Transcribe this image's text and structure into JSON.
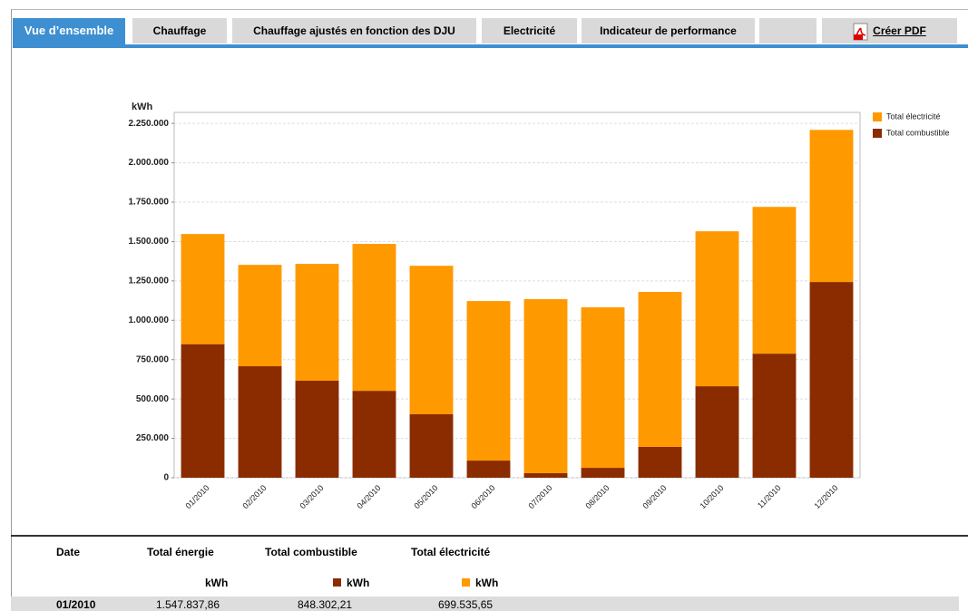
{
  "tabs": [
    "Vue d’ensemble",
    "Chauffage",
    "Chauffage ajustés en fonction des DJU",
    "Electricité",
    "Indicateur de performance"
  ],
  "pdf_button": "Créer PDF",
  "chart_data": {
    "type": "stacked_bar",
    "y_label": "kWh",
    "categories": [
      "01/2010",
      "02/2010",
      "03/2010",
      "04/2010",
      "05/2010",
      "06/2010",
      "07/2010",
      "08/2010",
      "09/2010",
      "10/2010",
      "11/2010",
      "12/2010"
    ],
    "series": [
      {
        "name": "Total électricité",
        "color": "#ff9900",
        "values": [
          699536,
          644000,
          742000,
          933000,
          943000,
          1013000,
          1105000,
          1019000,
          984000,
          984000,
          932000,
          966000
        ]
      },
      {
        "name": "Total combustible",
        "color": "#8b2c00",
        "values": [
          848302,
          708000,
          616000,
          552000,
          403000,
          109000,
          29000,
          63000,
          196000,
          581000,
          788000,
          1243000
        ]
      }
    ],
    "stack_order": [
      1,
      0
    ],
    "ylim": [
      0,
      2320000
    ],
    "yticks": [
      0,
      {
        "value": 250000,
        "label": "250.000"
      },
      {
        "value": 500000,
        "label": "500.000"
      },
      {
        "value": 750000,
        "label": "750.000"
      },
      {
        "value": 1000000,
        "label": "1.000.000"
      },
      {
        "value": 1250000,
        "label": "1.250.000"
      },
      {
        "value": 1500000,
        "label": "1.500.000"
      },
      {
        "value": 1750000,
        "label": "1.750.000"
      },
      {
        "value": 2000000,
        "label": "2.000.000"
      },
      {
        "value": 2250000,
        "label": "2.250.000"
      }
    ],
    "grid": true,
    "legend": "right"
  },
  "table": {
    "header": [
      "Date",
      "Total énergie",
      "Total combustible",
      "Total électricité"
    ],
    "units": [
      "kWh",
      "kWh",
      "kWh"
    ],
    "rows": [
      [
        "01/2010",
        "1.547.837,86",
        "848.302,21",
        "699.535,65"
      ]
    ]
  }
}
